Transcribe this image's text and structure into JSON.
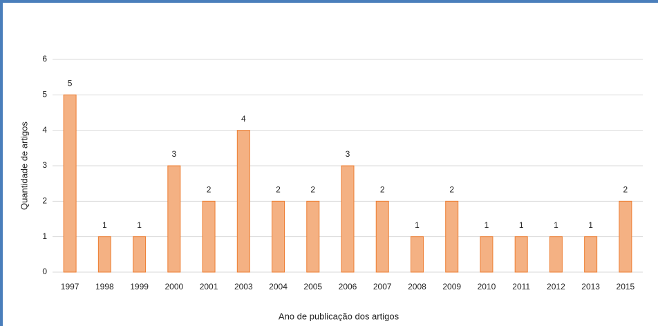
{
  "chart_data": {
    "type": "bar",
    "x_label": "Ano de publicação dos artigos",
    "y_label": "Quantidade de artigos",
    "categories": [
      "1997",
      "1998",
      "1999",
      "2000",
      "2001",
      "2003",
      "2004",
      "2005",
      "2006",
      "2007",
      "2008",
      "2009",
      "2010",
      "2011",
      "2012",
      "2013",
      "2015"
    ],
    "values": [
      5,
      1,
      1,
      3,
      2,
      4,
      2,
      2,
      3,
      2,
      1,
      2,
      1,
      1,
      1,
      1,
      2
    ],
    "color": "#f4b183",
    "ylim": [
      0,
      6
    ],
    "yticks": [
      0,
      1,
      2,
      3,
      4,
      5,
      6
    ],
    "grid": true
  }
}
